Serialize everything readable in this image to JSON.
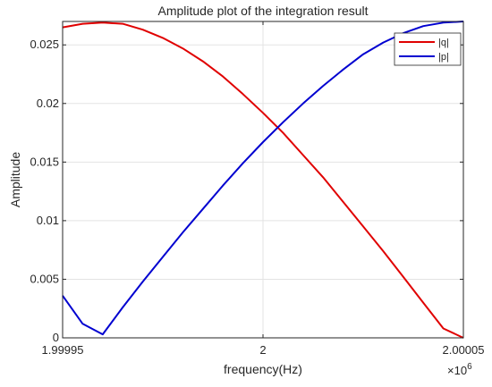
{
  "chart_data": {
    "type": "line",
    "title": "Amplitude plot of the integration result",
    "xlabel": "frequency(Hz)",
    "ylabel": "Amplitude",
    "x_exponent_label": "×10",
    "x_exponent_power": "6",
    "xlim": [
      1999950,
      2000050
    ],
    "ylim": [
      0,
      0.027
    ],
    "x_ticks": [
      {
        "value": 1999950,
        "label": "1.99995"
      },
      {
        "value": 2000000,
        "label": "2"
      },
      {
        "value": 2000050,
        "label": "2.00005"
      }
    ],
    "y_ticks": [
      {
        "value": 0,
        "label": "0"
      },
      {
        "value": 0.005,
        "label": "0.005"
      },
      {
        "value": 0.01,
        "label": "0.01"
      },
      {
        "value": 0.015,
        "label": "0.015"
      },
      {
        "value": 0.02,
        "label": "0.02"
      },
      {
        "value": 0.025,
        "label": "0.025"
      }
    ],
    "grid": true,
    "legend_position": "top-right",
    "x": [
      1999950,
      1999955,
      1999960,
      1999965,
      1999970,
      1999975,
      1999980,
      1999985,
      1999990,
      1999995,
      2000000,
      2000005,
      2000010,
      2000015,
      2000020,
      2000025,
      2000030,
      2000035,
      2000040,
      2000045,
      2000050
    ],
    "series": [
      {
        "name": "|q|",
        "color": "#e00000",
        "values": [
          0.0265,
          0.0268,
          0.0269,
          0.0268,
          0.0263,
          0.0256,
          0.0247,
          0.0236,
          0.0223,
          0.0208,
          0.0192,
          0.0175,
          0.0156,
          0.0137,
          0.0116,
          0.0095,
          0.0074,
          0.0052,
          0.003,
          0.0008,
          0.0
        ]
      },
      {
        "name": "|p|",
        "color": "#0000d0",
        "values": [
          0.0036,
          0.0012,
          0.0003,
          0.0026,
          0.0048,
          0.0069,
          0.009,
          0.011,
          0.013,
          0.0149,
          0.0167,
          0.0184,
          0.02,
          0.0215,
          0.0229,
          0.0242,
          0.0252,
          0.026,
          0.0266,
          0.0269,
          0.027
        ]
      }
    ]
  }
}
